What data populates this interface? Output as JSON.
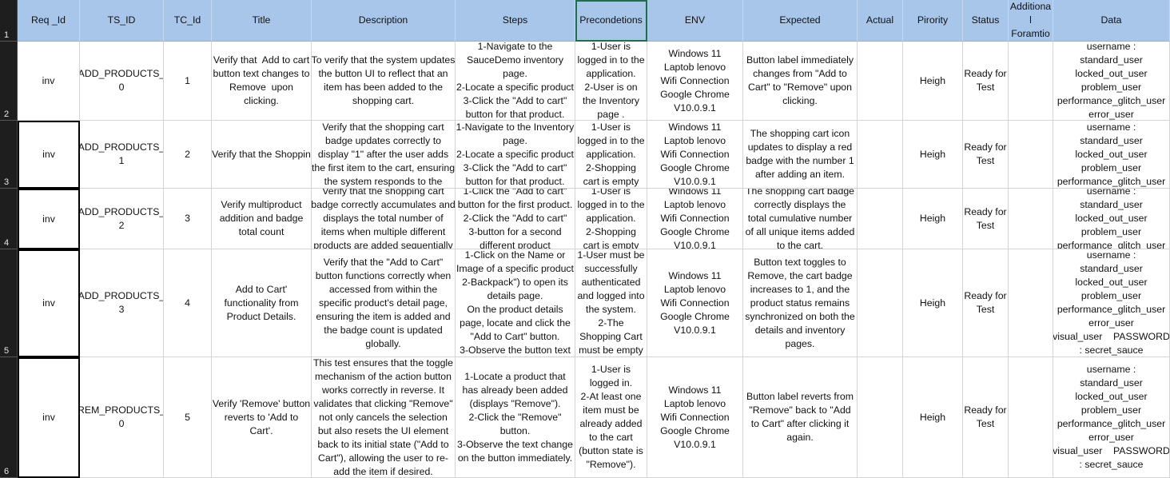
{
  "row_numbers": [
    1,
    2,
    3,
    4,
    5,
    6
  ],
  "header": [
    "Req _Id",
    "TS_ID",
    "TC_Id",
    "Title",
    "Description",
    "Steps",
    "Precondetions",
    "ENV",
    "Expected",
    "Actual",
    "Pirority",
    "Status",
    "Additiona\nl\nForamtio",
    "Data"
  ],
  "rows": [
    [
      "inv",
      "ADD_PRODUCTS_\n0",
      1,
      "Verify that  Add to cart\nbutton text changes to\nRemove  upon\nclicking.",
      "To verify that the system updates\nthe button UI to reflect that an\nitem has been added to the\nshopping cart.",
      "1-Navigate to the\nSauceDemo inventory\npage.\n2-Locate a specific product\n3-Click the \"Add to cart\"\nbutton for that product.",
      "1-User is\nlogged in to the\napplication.\n2-User is on\nthe Inventory\npage .",
      "Windows 11\nLaptob lenovo\nWifi Connection\nGoogle Chrome\nV10.0.9.1",
      "Button label immediately\nchanges from \"Add to\nCart\" to \"Remove\" upon\nclicking.",
      null,
      "Heigh",
      "Ready for\nTest",
      null,
      "username :\nstandard_user\nlocked_out_user\nproblem_user\nperformance_glitch_user\nerror_user"
    ],
    [
      "inv",
      "ADD_PRODUCTS_\n1",
      2,
      "Verify that the Shoppin",
      "Verify that the shopping cart\nbadge updates correctly to\ndisplay \"1\" after the user adds\nthe first item to the cart, ensuring\nthe system responds to the",
      "1-Navigate to the Inventory\npage.\n2-Locate a specific product\n3-Click the \"Add to cart\"\nbutton for that product.",
      "1-User is\nlogged in to the\napplication.\n2-Shopping\ncart is empty",
      "Windows 11\nLaptob lenovo\nWifi Connection\nGoogle Chrome\nV10.0.9.1",
      "The shopping cart icon\nupdates to display a red\nbadge with the number 1\nafter adding an item.",
      null,
      "Heigh",
      "Ready for\nTest",
      null,
      "username :\nstandard_user\nlocked_out_user\nproblem_user\nperformance_glitch_user"
    ],
    [
      "inv",
      "ADD_PRODUCTS_\n2",
      3,
      "Verify multiproduct\naddition and badge\ntotal count",
      "Verify that the shopping cart\nbadge correctly accumulates and\ndisplays the total number of\nitems when multiple different\nproducts are added sequentially",
      "1-Click the \"Add to cart\"\nbutton for the first product.\n2-Click the \"Add to cart\"\n3-button for a second\ndifferent product",
      "1-User is\nlogged in to the\napplication.\n2-Shopping\ncart is empty",
      "Windows 11\nLaptob lenovo\nWifi Connection\nGoogle Chrome\nV10.0.9.1",
      "The shopping cart badge\ncorrectly displays the\ntotal cumulative number\nof all unique items added\nto the cart.",
      null,
      "Heigh",
      "Ready for\nTest",
      null,
      "username :\nstandard_user\nlocked_out_user\nproblem_user\nperformance_glitch_user"
    ],
    [
      "inv",
      "ADD_PRODUCTS_\n3",
      4,
      "Add to Cart'\nfunctionality from\nProduct Details.",
      "Verify that the \"Add to Cart\"\nbutton functions correctly when\naccessed from within the\nspecific product's detail page,\nensuring the item is added and\nthe badge count is updated\nglobally.",
      "1-Click on the Name or\nImage of a specific product\n2-Backpack\") to open its\ndetails page.\nOn the product details\npage, locate and click the\n\"Add to Cart\" button.\n3-Observe the button text",
      "1-User must be\nsuccessfully\nauthenticated\nand logged into\nthe system.\n2-The\nShopping Cart\nmust be empty",
      "Windows 11\nLaptob lenovo\nWifi Connection\nGoogle Chrome\nV10.0.9.1",
      "Button text toggles to\nRemove, the cart badge\nincreases to 1, and the\nproduct status remains\nsynchronized on both the\ndetails and inventory\npages.",
      null,
      "Heigh",
      "Ready for\nTest",
      null,
      "username :\nstandard_user\nlocked_out_user\nproblem_user\nperformance_glitch_user\nerror_user\nvisual_user    PASSWORD\n: secret_sauce"
    ],
    [
      "inv",
      "REM_PRODUCTS_\n0",
      5,
      "Verify 'Remove' button\nreverts to 'Add to\nCart'.",
      "This test ensures that the toggle\nmechanism of the action button\nworks correctly in reverse. It\nvalidates that clicking \"Remove\"\nnot only cancels the selection\nbut also resets the UI element\nback to its initial state (\"Add to\nCart\"), allowing the user to re-\nadd the item if desired.",
      "1-Locate a product that\nhas already been added\n(displays \"Remove\").\n2-Click the \"Remove\"\nbutton.\n3-Observe the text change\non the button immediately.",
      "1-User is\nlogged in.\n2-At least one\nitem must be\nalready added\nto the cart\n(button state is\n\"Remove\").",
      "Windows 11\nLaptob lenovo\nWifi Connection\nGoogle Chrome\nV10.0.9.1",
      "Button label reverts from\n\"Remove\" back to \"Add\nto Cart\" after clicking it\nagain.",
      null,
      "Heigh",
      "Ready for\nTest",
      null,
      "username :\nstandard_user\nlocked_out_user\nproblem_user\nperformance_glitch_user\nerror_user\nvisual_user    PASSWORD\n: secret_sauce"
    ]
  ]
}
